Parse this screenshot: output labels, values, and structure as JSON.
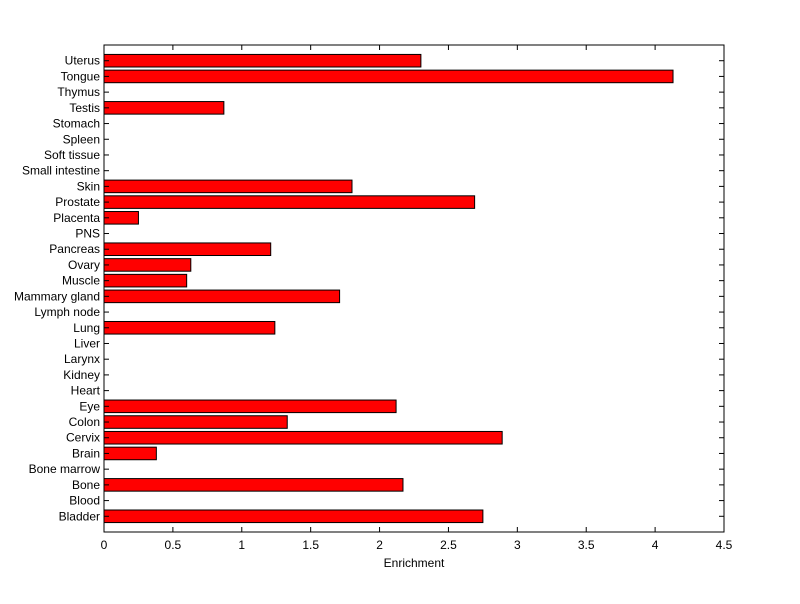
{
  "chart_data": {
    "type": "bar",
    "orientation": "horizontal",
    "categories": [
      "Bladder",
      "Blood",
      "Bone",
      "Bone marrow",
      "Brain",
      "Cervix",
      "Colon",
      "Eye",
      "Heart",
      "Kidney",
      "Larynx",
      "Liver",
      "Lung",
      "Lymph node",
      "Mammary gland",
      "Muscle",
      "Ovary",
      "Pancreas",
      "PNS",
      "Placenta",
      "Prostate",
      "Skin",
      "Small intestine",
      "Soft tissue",
      "Spleen",
      "Stomach",
      "Testis",
      "Thymus",
      "Tongue",
      "Uterus"
    ],
    "values": [
      2.75,
      0,
      2.17,
      0,
      0.38,
      2.89,
      1.33,
      2.12,
      0,
      0,
      0,
      0,
      1.24,
      0,
      1.71,
      0.6,
      0.63,
      1.21,
      0,
      0.25,
      2.69,
      1.8,
      0,
      0,
      0,
      0,
      0.87,
      0,
      4.13,
      2.3
    ],
    "xlabel": "Enrichment",
    "ylabel": "",
    "title": "",
    "xlim": [
      0,
      4.5
    ],
    "xticks": [
      "0",
      "0.5",
      "1",
      "1.5",
      "2",
      "2.5",
      "3",
      "3.5",
      "4",
      "4.5"
    ],
    "grid": false,
    "legend": false,
    "colors": {
      "bar_fill": "#ff0000",
      "bar_edge": "#000000",
      "axes": "#000000",
      "background": "#ffffff"
    }
  }
}
